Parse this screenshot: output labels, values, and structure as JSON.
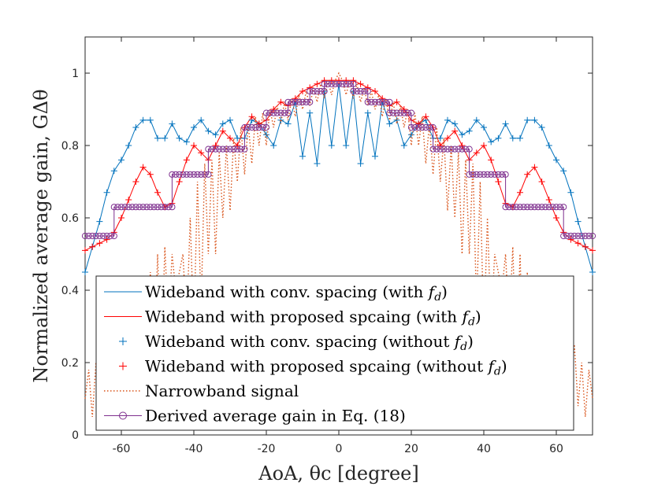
{
  "chart_data": {
    "type": "line",
    "title": "",
    "xlabel": "AoA, θc [degree]",
    "ylabel": "Normalized average gain, GΔθ",
    "xlim": [
      -70,
      70
    ],
    "ylim": [
      0,
      1.1
    ],
    "x_ticks": [
      -60,
      -40,
      -20,
      0,
      20,
      40,
      60
    ],
    "y_ticks": [
      0,
      0.2,
      0.4,
      0.6,
      0.8,
      1
    ],
    "x_tick_labels": [
      "-60",
      "-40",
      "-20",
      "0",
      "20",
      "40",
      "60"
    ],
    "y_tick_labels": [
      "0",
      "0.2",
      "0.4",
      "0.6",
      "0.8",
      "1"
    ],
    "grid": false,
    "legend_position": "bottom-left",
    "colors": {
      "conv": "#0072bd",
      "proposed": "#ff0000",
      "narrowband": "#d95319",
      "derived": "#7e2f8e",
      "axis": "#262626"
    },
    "series": [
      {
        "name": "Wideband with conv. spacing (with f_d)",
        "legend_label": "Wideband with conv. spacing (with ",
        "legend_suffix": ")",
        "style": "solid",
        "x": [
          -70,
          -68,
          -66,
          -64,
          -62,
          -60,
          -58,
          -56,
          -54,
          -52,
          -50,
          -48,
          -46,
          -44,
          -42,
          -40,
          -38,
          -36,
          -34,
          -32,
          -30,
          -28,
          -26,
          -24,
          -22,
          -20,
          -18,
          -16,
          -14,
          -12,
          -10,
          -8,
          -6,
          -4,
          -2,
          0,
          2,
          4,
          6,
          8,
          10,
          12,
          14,
          16,
          18,
          20,
          22,
          24,
          26,
          28,
          30,
          32,
          34,
          36,
          38,
          40,
          42,
          44,
          46,
          48,
          50,
          52,
          54,
          56,
          58,
          60,
          62,
          64,
          66,
          68,
          70
        ],
        "values": [
          0.45,
          0.52,
          0.59,
          0.67,
          0.73,
          0.76,
          0.8,
          0.85,
          0.87,
          0.87,
          0.82,
          0.82,
          0.86,
          0.82,
          0.81,
          0.85,
          0.87,
          0.84,
          0.83,
          0.86,
          0.87,
          0.82,
          0.82,
          0.87,
          0.86,
          0.83,
          0.8,
          0.87,
          0.86,
          0.92,
          0.77,
          0.89,
          0.75,
          0.95,
          0.8,
          0.97,
          0.8,
          0.95,
          0.75,
          0.89,
          0.77,
          0.92,
          0.86,
          0.87,
          0.8,
          0.83,
          0.86,
          0.87,
          0.82,
          0.82,
          0.87,
          0.86,
          0.83,
          0.84,
          0.87,
          0.85,
          0.81,
          0.82,
          0.86,
          0.82,
          0.82,
          0.87,
          0.87,
          0.85,
          0.8,
          0.76,
          0.73,
          0.67,
          0.59,
          0.52,
          0.45
        ]
      },
      {
        "name": "Wideband with proposed spcaing (with f_d)",
        "legend_label": "Wideband with proposed spcaing (with ",
        "legend_suffix": ")",
        "style": "solid",
        "x": [
          -70,
          -68,
          -66,
          -64,
          -62,
          -60,
          -58,
          -56,
          -54,
          -52,
          -50,
          -48,
          -46,
          -44,
          -42,
          -40,
          -38,
          -36,
          -34,
          -32,
          -30,
          -28,
          -26,
          -24,
          -22,
          -20,
          -18,
          -16,
          -14,
          -12,
          -10,
          -8,
          -6,
          -4,
          -2,
          0,
          2,
          4,
          6,
          8,
          10,
          12,
          14,
          16,
          18,
          20,
          22,
          24,
          26,
          28,
          30,
          32,
          34,
          36,
          38,
          40,
          42,
          44,
          46,
          48,
          50,
          52,
          54,
          56,
          58,
          60,
          62,
          64,
          66,
          68,
          70
        ],
        "values": [
          0.51,
          0.52,
          0.53,
          0.54,
          0.56,
          0.6,
          0.65,
          0.7,
          0.74,
          0.72,
          0.67,
          0.63,
          0.64,
          0.7,
          0.76,
          0.8,
          0.78,
          0.76,
          0.8,
          0.84,
          0.82,
          0.8,
          0.85,
          0.88,
          0.86,
          0.87,
          0.9,
          0.92,
          0.91,
          0.93,
          0.95,
          0.96,
          0.97,
          0.98,
          0.98,
          0.98,
          0.98,
          0.98,
          0.97,
          0.96,
          0.95,
          0.93,
          0.91,
          0.92,
          0.9,
          0.87,
          0.86,
          0.88,
          0.85,
          0.8,
          0.82,
          0.84,
          0.8,
          0.76,
          0.78,
          0.8,
          0.76,
          0.7,
          0.64,
          0.63,
          0.67,
          0.72,
          0.74,
          0.7,
          0.65,
          0.6,
          0.56,
          0.54,
          0.53,
          0.52,
          0.51
        ]
      },
      {
        "name": "Wideband with conv. spacing (without f_d)",
        "legend_label": "Wideband with conv. spacing (without ",
        "legend_suffix": ")",
        "style": "plus-markers",
        "x": [
          -70,
          -68,
          -66,
          -64,
          -62,
          -60,
          -58,
          -56,
          -54,
          -52,
          -50,
          -48,
          -46,
          -44,
          -42,
          -40,
          -38,
          -36,
          -34,
          -32,
          -30,
          -28,
          -26,
          -24,
          -22,
          -20,
          -18,
          -16,
          -14,
          -12,
          -10,
          -8,
          -6,
          -4,
          -2,
          0,
          2,
          4,
          6,
          8,
          10,
          12,
          14,
          16,
          18,
          20,
          22,
          24,
          26,
          28,
          30,
          32,
          34,
          36,
          38,
          40,
          42,
          44,
          46,
          48,
          50,
          52,
          54,
          56,
          58,
          60,
          62,
          64,
          66,
          68,
          70
        ],
        "values": [
          0.45,
          0.52,
          0.59,
          0.67,
          0.73,
          0.76,
          0.8,
          0.85,
          0.87,
          0.87,
          0.82,
          0.82,
          0.86,
          0.82,
          0.81,
          0.85,
          0.87,
          0.84,
          0.83,
          0.86,
          0.87,
          0.82,
          0.82,
          0.87,
          0.86,
          0.83,
          0.8,
          0.87,
          0.86,
          0.92,
          0.77,
          0.89,
          0.75,
          0.95,
          0.8,
          0.97,
          0.8,
          0.95,
          0.75,
          0.89,
          0.77,
          0.92,
          0.86,
          0.87,
          0.8,
          0.83,
          0.86,
          0.87,
          0.82,
          0.82,
          0.87,
          0.86,
          0.83,
          0.84,
          0.87,
          0.85,
          0.81,
          0.82,
          0.86,
          0.82,
          0.82,
          0.87,
          0.87,
          0.85,
          0.8,
          0.76,
          0.73,
          0.67,
          0.59,
          0.52,
          0.45
        ]
      },
      {
        "name": "Wideband with proposed spcaing (without f_d)",
        "legend_label": "Wideband with proposed spcaing (without ",
        "legend_suffix": ")",
        "style": "plus-markers",
        "x": [
          -70,
          -68,
          -66,
          -64,
          -62,
          -60,
          -58,
          -56,
          -54,
          -52,
          -50,
          -48,
          -46,
          -44,
          -42,
          -40,
          -38,
          -36,
          -34,
          -32,
          -30,
          -28,
          -26,
          -24,
          -22,
          -20,
          -18,
          -16,
          -14,
          -12,
          -10,
          -8,
          -6,
          -4,
          -2,
          0,
          2,
          4,
          6,
          8,
          10,
          12,
          14,
          16,
          18,
          20,
          22,
          24,
          26,
          28,
          30,
          32,
          34,
          36,
          38,
          40,
          42,
          44,
          46,
          48,
          50,
          52,
          54,
          56,
          58,
          60,
          62,
          64,
          66,
          68,
          70
        ],
        "values": [
          0.51,
          0.52,
          0.53,
          0.54,
          0.56,
          0.6,
          0.65,
          0.7,
          0.74,
          0.72,
          0.67,
          0.63,
          0.64,
          0.7,
          0.76,
          0.8,
          0.78,
          0.76,
          0.8,
          0.84,
          0.82,
          0.8,
          0.85,
          0.88,
          0.86,
          0.87,
          0.9,
          0.92,
          0.91,
          0.93,
          0.95,
          0.96,
          0.97,
          0.98,
          0.98,
          0.98,
          0.98,
          0.98,
          0.97,
          0.96,
          0.95,
          0.93,
          0.91,
          0.92,
          0.9,
          0.87,
          0.86,
          0.88,
          0.85,
          0.8,
          0.82,
          0.84,
          0.8,
          0.76,
          0.78,
          0.8,
          0.76,
          0.7,
          0.64,
          0.63,
          0.67,
          0.72,
          0.74,
          0.7,
          0.65,
          0.6,
          0.56,
          0.54,
          0.53,
          0.52,
          0.51
        ]
      },
      {
        "name": "Narrowband signal",
        "legend_label": "Narrowband signal",
        "legend_suffix": "",
        "style": "dotted",
        "x": [
          -70,
          -69,
          -68,
          -67,
          -66,
          -65,
          -64,
          -63,
          -62,
          -61,
          -60,
          -59,
          -58,
          -57,
          -56,
          -55,
          -54,
          -53,
          -52,
          -51,
          -50,
          -49,
          -48,
          -47,
          -46,
          -45,
          -44,
          -43,
          -42,
          -41,
          -40,
          -39,
          -38,
          -37,
          -36,
          -35,
          -34,
          -33,
          -32,
          -31,
          -30,
          -29,
          -28,
          -27,
          -26,
          -25,
          -24,
          -23,
          -22,
          -21,
          -20,
          -19,
          -18,
          -17,
          -16,
          -15,
          -14,
          -13,
          -12,
          -11,
          -10,
          -9,
          -8,
          -7,
          -6,
          -5,
          -4,
          -3,
          -2,
          -1,
          0,
          1,
          2,
          3,
          4,
          5,
          6,
          7,
          8,
          9,
          10,
          11,
          12,
          13,
          14,
          15,
          16,
          17,
          18,
          19,
          20,
          21,
          22,
          23,
          24,
          25,
          26,
          27,
          28,
          29,
          30,
          31,
          32,
          33,
          34,
          35,
          36,
          37,
          38,
          39,
          40,
          41,
          42,
          43,
          44,
          45,
          46,
          47,
          48,
          49,
          50,
          51,
          52,
          53,
          54,
          55,
          56,
          57,
          58,
          59,
          60,
          61,
          62,
          63,
          64,
          65,
          66,
          67,
          68,
          69,
          70
        ],
        "values": [
          0.1,
          0.18,
          0.05,
          0.2,
          0.08,
          0.25,
          0.12,
          0.3,
          0.2,
          0.32,
          0.28,
          0.34,
          0.34,
          0.3,
          0.36,
          0.25,
          0.42,
          0.2,
          0.45,
          0.15,
          0.5,
          0.18,
          0.52,
          0.3,
          0.5,
          0.4,
          0.45,
          0.5,
          0.3,
          0.6,
          0.28,
          0.7,
          0.35,
          0.75,
          0.5,
          0.76,
          0.5,
          0.78,
          0.6,
          0.8,
          0.62,
          0.82,
          0.7,
          0.85,
          0.72,
          0.86,
          0.75,
          0.88,
          0.8,
          0.89,
          0.8,
          0.9,
          0.85,
          0.91,
          0.86,
          0.92,
          0.87,
          0.93,
          0.88,
          0.94,
          0.9,
          0.95,
          0.91,
          0.96,
          0.92,
          0.97,
          0.93,
          0.98,
          0.94,
          0.98,
          1.0,
          0.98,
          0.94,
          0.98,
          0.93,
          0.97,
          0.92,
          0.96,
          0.91,
          0.95,
          0.9,
          0.94,
          0.88,
          0.93,
          0.87,
          0.92,
          0.86,
          0.91,
          0.85,
          0.9,
          0.8,
          0.89,
          0.8,
          0.88,
          0.75,
          0.86,
          0.72,
          0.85,
          0.7,
          0.82,
          0.62,
          0.8,
          0.6,
          0.78,
          0.5,
          0.76,
          0.5,
          0.75,
          0.35,
          0.7,
          0.28,
          0.6,
          0.3,
          0.5,
          0.45,
          0.4,
          0.5,
          0.3,
          0.52,
          0.18,
          0.5,
          0.15,
          0.45,
          0.2,
          0.42,
          0.25,
          0.36,
          0.3,
          0.34,
          0.34,
          0.28,
          0.32,
          0.2,
          0.3,
          0.12,
          0.25,
          0.08,
          0.2,
          0.05,
          0.18,
          0.1
        ]
      },
      {
        "name": "Derived average gain in Eq. (18)",
        "legend_label": "Derived average gain in Eq. (18)",
        "legend_suffix": "",
        "style": "step-circles",
        "steps": [
          {
            "x0": -70,
            "x1": -62,
            "value": 0.55
          },
          {
            "x0": -62,
            "x1": -46,
            "value": 0.63
          },
          {
            "x0": -46,
            "x1": -36,
            "value": 0.72
          },
          {
            "x0": -36,
            "x1": -26,
            "value": 0.79
          },
          {
            "x0": -26,
            "x1": -20,
            "value": 0.85
          },
          {
            "x0": -20,
            "x1": -14,
            "value": 0.89
          },
          {
            "x0": -14,
            "x1": -8,
            "value": 0.92
          },
          {
            "x0": -8,
            "x1": -4,
            "value": 0.95
          },
          {
            "x0": -4,
            "x1": 4,
            "value": 0.97
          },
          {
            "x0": 4,
            "x1": 8,
            "value": 0.95
          },
          {
            "x0": 8,
            "x1": 14,
            "value": 0.92
          },
          {
            "x0": 14,
            "x1": 20,
            "value": 0.89
          },
          {
            "x0": 20,
            "x1": 26,
            "value": 0.85
          },
          {
            "x0": 26,
            "x1": 36,
            "value": 0.79
          },
          {
            "x0": 36,
            "x1": 46,
            "value": 0.72
          },
          {
            "x0": 46,
            "x1": 62,
            "value": 0.63
          },
          {
            "x0": 62,
            "x1": 70,
            "value": 0.55
          }
        ]
      }
    ],
    "legend_italic_symbol": "f",
    "legend_italic_subscript": "d"
  }
}
